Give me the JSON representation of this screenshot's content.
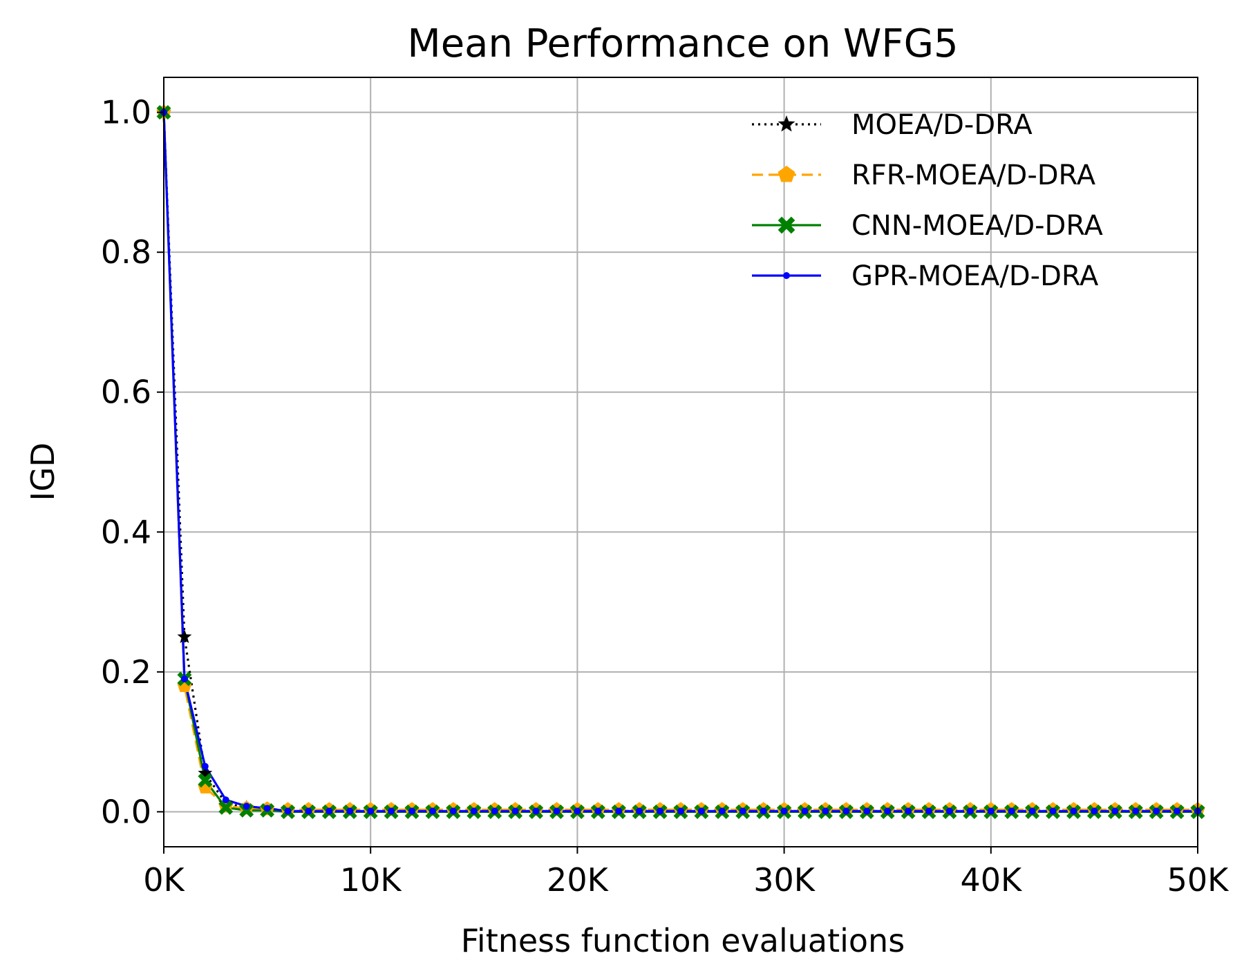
{
  "chart_data": {
    "type": "line",
    "title": "Mean Performance on WFG5",
    "xlabel": "Fitness function evaluations",
    "ylabel": "IGD",
    "xlim": [
      0,
      50000
    ],
    "ylim": [
      -0.05,
      1.05
    ],
    "xticks": [
      0,
      10000,
      20000,
      30000,
      40000,
      50000
    ],
    "xtick_labels": [
      "0K",
      "10K",
      "20K",
      "30K",
      "40K",
      "50K"
    ],
    "yticks": [
      0.0,
      0.2,
      0.4,
      0.6,
      0.8,
      1.0
    ],
    "ytick_labels": [
      "0.0",
      "0.2",
      "0.4",
      "0.6",
      "0.8",
      "1.0"
    ],
    "grid": true,
    "legend_position": "top-right",
    "x_step": 1000,
    "series": [
      {
        "name": "MOEA/D-DRA",
        "color": "#000000",
        "line_style": "dotted",
        "marker": "star",
        "head": [
          1.0,
          0.25,
          0.055,
          0.012,
          0.006,
          0.004
        ],
        "tail_value": 0.001
      },
      {
        "name": "RFR-MOEA/D-DRA",
        "color": "#FFA500",
        "line_style": "dashed",
        "marker": "pentagon",
        "head": [
          1.0,
          0.18,
          0.035,
          0.008,
          0.005,
          0.004
        ],
        "tail_value": 0.003
      },
      {
        "name": "CNN-MOEA/D-DRA",
        "color": "#008000",
        "line_style": "solid",
        "marker": "x-filled",
        "head": [
          1.0,
          0.19,
          0.045,
          0.006,
          0.002,
          0.002
        ],
        "tail_value": 0.0
      },
      {
        "name": "GPR-MOEA/D-DRA",
        "color": "#0000FF",
        "line_style": "solid",
        "marker": "circle",
        "head": [
          1.0,
          0.19,
          0.065,
          0.017,
          0.008,
          0.005
        ],
        "tail_value": 0.001
      }
    ]
  }
}
